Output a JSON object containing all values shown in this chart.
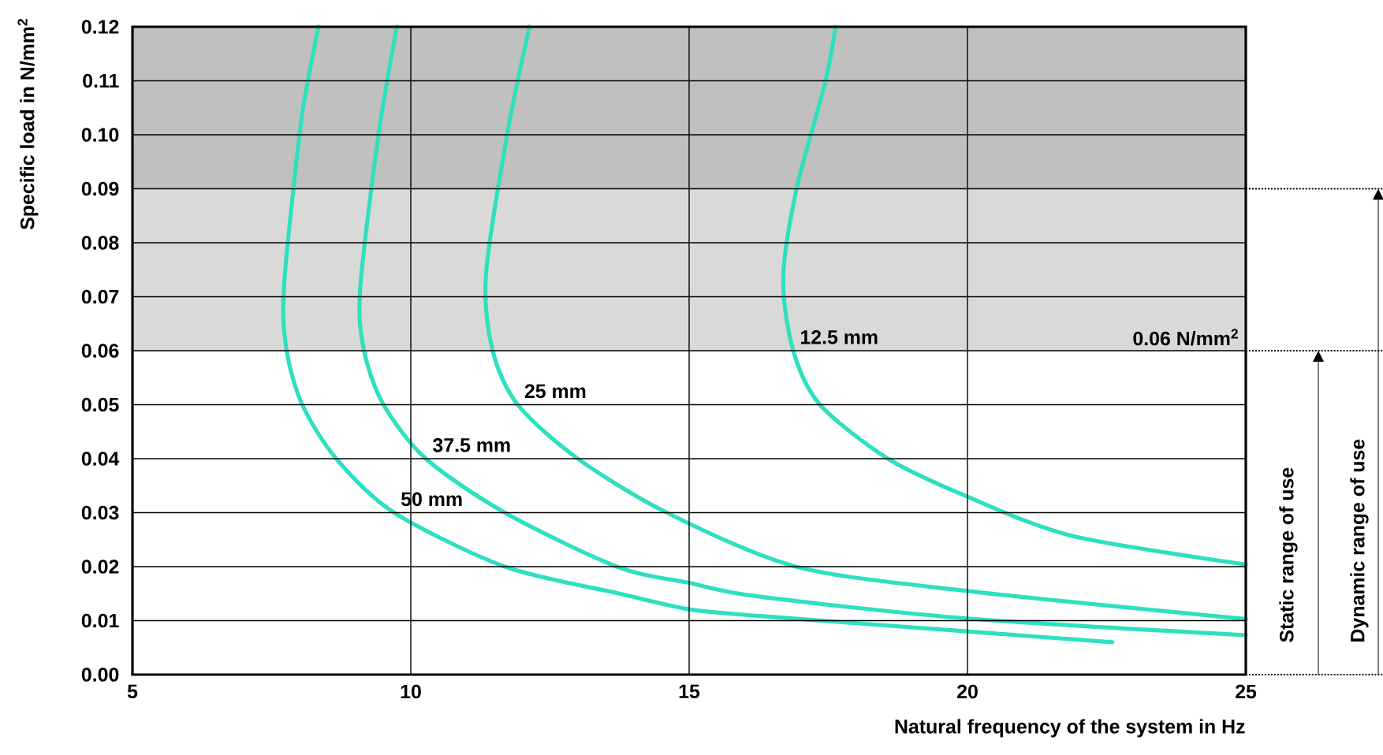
{
  "chart_data": {
    "type": "line",
    "xlabel": "Natural frequency of the system in Hz",
    "ylabel": "Specific load in N/mm$^{2}$",
    "xlim": [
      5,
      25
    ],
    "xticks": [
      5,
      10,
      15,
      20,
      25
    ],
    "ylim": [
      0,
      0.12
    ],
    "yticks": [
      {
        "value": 0,
        "label": "0.00"
      },
      0.01,
      0.02,
      0.03,
      0.04,
      0.05,
      0.06,
      0.07,
      0.08,
      0.09,
      {
        "value": 0.1,
        "label": "0.10"
      },
      0.11,
      0.12
    ],
    "grid": true,
    "legend": false,
    "marker": "none",
    "line_style": "solid",
    "series": [
      {
        "name": "12.5 mm",
        "color": "#2ee0c0",
        "x": [
          17.63,
          17.44,
          16.93,
          16.69,
          16.87,
          17.35,
          18.57,
          19.99,
          21.88,
          25
        ],
        "values": [
          0.12,
          0.1095,
          0.09,
          0.0734,
          0.06,
          0.05,
          0.04,
          0.033,
          0.0257,
          0.0204
        ]
      },
      {
        "name": "25 mm",
        "color": "#2ee0c0",
        "x": [
          12.13,
          11.73,
          11.35,
          11.47,
          11.92,
          13.0,
          14.6,
          16.92,
          19.99,
          25
        ],
        "values": [
          0.12,
          0.1,
          0.074,
          0.06,
          0.05,
          0.04,
          0.03,
          0.02,
          0.0155,
          0.0103
        ]
      },
      {
        "name": "37.5 mm",
        "color": "#2ee0c0",
        "x": [
          9.75,
          9.42,
          9.09,
          9.16,
          9.51,
          10.27,
          11.69,
          13.7,
          15,
          16.22,
          19.99,
          25
        ],
        "values": [
          0.12,
          0.1,
          0.0715,
          0.06,
          0.05,
          0.04,
          0.03,
          0.02,
          0.017,
          0.0145,
          0.0104,
          0.0073
        ]
      },
      {
        "name": "50 mm",
        "color": "#2ee0c0",
        "x": [
          8.34,
          8.14,
          8.0,
          7.72,
          7.77,
          8.05,
          8.66,
          9.7,
          11.69,
          13.75,
          15,
          16.22,
          19.99,
          22.6
        ],
        "values": [
          0.12,
          0.1094,
          0.1,
          0.0715,
          0.06,
          0.05,
          0.04,
          0.03,
          0.02,
          0.015,
          0.0121,
          0.0109,
          0.008,
          0.006
        ]
      }
    ],
    "bands": [
      {
        "axis": "y",
        "from": 0.06,
        "to": 0.09,
        "color": "#d9d9d9"
      },
      {
        "axis": "y",
        "from": 0.09,
        "to": 0.12,
        "color": "#c0c0c0"
      }
    ],
    "annotations": [
      "0.06 N/mm$^{2}$",
      "Static range of use",
      "Dynamic range of use"
    ]
  }
}
